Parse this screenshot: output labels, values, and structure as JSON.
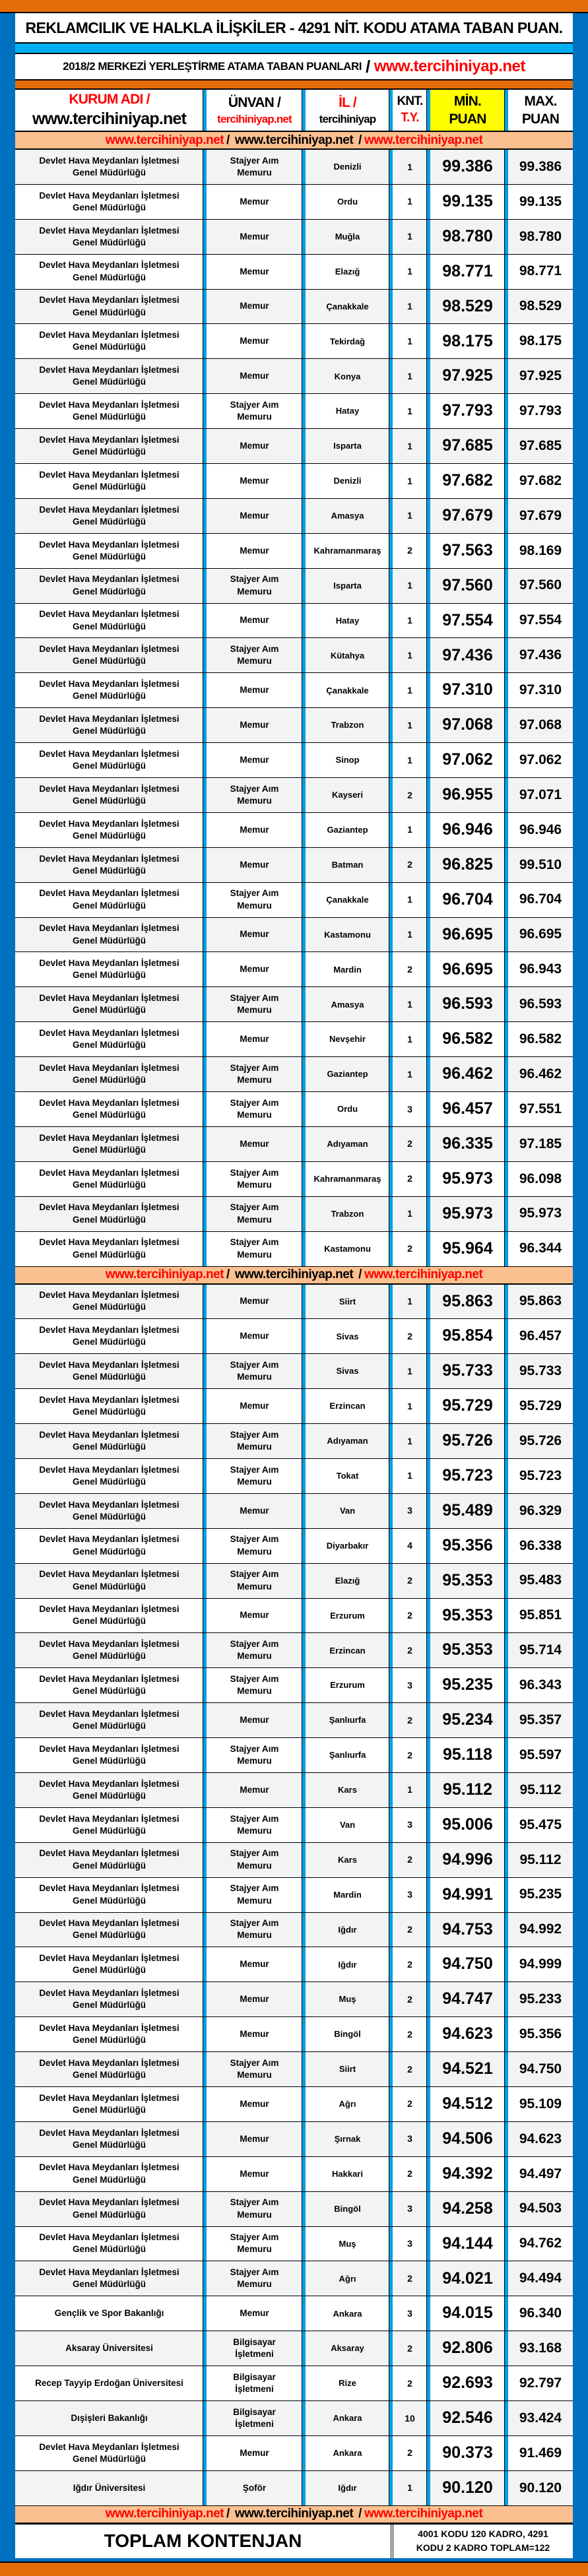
{
  "title": "REKLAMCILIK VE HALKLA İLİŞKİLER - 4291 NİT. KODU ATAMA TABAN PUAN.",
  "subtitle": {
    "text": "2018/2 MERKEZİ YERLEŞTİRME ATAMA TABAN PUANLARI",
    "slash": "/",
    "site": "www.tercihiniyap.net"
  },
  "header": {
    "kurum": "KURUM ADI /",
    "kurum_site": "www.tercihiniyap.net",
    "unvan": "ÜNVAN /",
    "unvan_site": "tercihiniyap.net",
    "il": "İL /",
    "il_site": "tercihiniyap",
    "knt1": "KNT.",
    "knt2": "T.Y.",
    "min1": "MİN.",
    "min2": "PUAN",
    "max1": "MAX.",
    "max2": "PUAN"
  },
  "banner": {
    "left": "www.tercihiniyap.net",
    "sep1": " / ",
    "mid": "www.tercihiniyap.net",
    "sep2": " / ",
    "right": "www.tercihiniyap.net"
  },
  "labels": {
    "dhmi1": "Devlet Hava Meydanları İşletmesi",
    "dhmi2": "Genel Müdürlüğü"
  },
  "colors": {
    "orange": "#e36c09",
    "blue": "#0070c0",
    "cyan": "#00b0f0",
    "highlight": "#ffff00",
    "banner": "#fac090",
    "red": "#ff0000"
  },
  "rows_a": [
    [
      "DHMI",
      "Stajyer Aım|Memuru",
      "Denizli",
      "1",
      "99.386",
      "99.386"
    ],
    [
      "DHMI",
      "Memur",
      "Ordu",
      "1",
      "99.135",
      "99.135"
    ],
    [
      "DHMI",
      "Memur",
      "Muğla",
      "1",
      "98.780",
      "98.780"
    ],
    [
      "DHMI",
      "Memur",
      "Elazığ",
      "1",
      "98.771",
      "98.771"
    ],
    [
      "DHMI",
      "Memur",
      "Çanakkale",
      "1",
      "98.529",
      "98.529"
    ],
    [
      "DHMI",
      "Memur",
      "Tekirdağ",
      "1",
      "98.175",
      "98.175"
    ],
    [
      "DHMI",
      "Memur",
      "Konya",
      "1",
      "97.925",
      "97.925"
    ],
    [
      "DHMI",
      "Stajyer Aım|Memuru",
      "Hatay",
      "1",
      "97.793",
      "97.793"
    ],
    [
      "DHMI",
      "Memur",
      "Isparta",
      "1",
      "97.685",
      "97.685"
    ],
    [
      "DHMI",
      "Memur",
      "Denizli",
      "1",
      "97.682",
      "97.682"
    ],
    [
      "DHMI",
      "Memur",
      "Amasya",
      "1",
      "97.679",
      "97.679"
    ],
    [
      "DHMI",
      "Memur",
      "Kahramanmaraş",
      "2",
      "97.563",
      "98.169"
    ],
    [
      "DHMI",
      "Stajyer Aım|Memuru",
      "Isparta",
      "1",
      "97.560",
      "97.560"
    ],
    [
      "DHMI",
      "Memur",
      "Hatay",
      "1",
      "97.554",
      "97.554"
    ],
    [
      "DHMI",
      "Stajyer Aım|Memuru",
      "Kütahya",
      "1",
      "97.436",
      "97.436"
    ],
    [
      "DHMI",
      "Memur",
      "Çanakkale",
      "1",
      "97.310",
      "97.310"
    ],
    [
      "DHMI",
      "Memur",
      "Trabzon",
      "1",
      "97.068",
      "97.068"
    ],
    [
      "DHMI",
      "Memur",
      "Sinop",
      "1",
      "97.062",
      "97.062"
    ],
    [
      "DHMI",
      "Stajyer Aım|Memuru",
      "Kayseri",
      "2",
      "96.955",
      "97.071"
    ],
    [
      "DHMI",
      "Memur",
      "Gaziantep",
      "1",
      "96.946",
      "96.946"
    ],
    [
      "DHMI",
      "Memur",
      "Batman",
      "2",
      "96.825",
      "99.510"
    ],
    [
      "DHMI",
      "Stajyer Aım|Memuru",
      "Çanakkale",
      "1",
      "96.704",
      "96.704"
    ],
    [
      "DHMI",
      "Memur",
      "Kastamonu",
      "1",
      "96.695",
      "96.695"
    ],
    [
      "DHMI",
      "Memur",
      "Mardin",
      "2",
      "96.695",
      "96.943"
    ],
    [
      "DHMI",
      "Stajyer Aım|Memuru",
      "Amasya",
      "1",
      "96.593",
      "96.593"
    ],
    [
      "DHMI",
      "Memur",
      "Nevşehir",
      "1",
      "96.582",
      "96.582"
    ],
    [
      "DHMI",
      "Stajyer Aım|Memuru",
      "Gaziantep",
      "1",
      "96.462",
      "96.462"
    ],
    [
      "DHMI",
      "Stajyer Aım|Memuru",
      "Ordu",
      "3",
      "96.457",
      "97.551"
    ],
    [
      "DHMI",
      "Memur",
      "Adıyaman",
      "2",
      "96.335",
      "97.185"
    ],
    [
      "DHMI",
      "Stajyer Aım|Memuru",
      "Kahramanmaraş",
      "2",
      "95.973",
      "96.098"
    ],
    [
      "DHMI",
      "Stajyer Aım|Memuru",
      "Trabzon",
      "1",
      "95.973",
      "95.973"
    ],
    [
      "DHMI",
      "Stajyer Aım|Memuru",
      "Kastamonu",
      "2",
      "95.964",
      "96.344"
    ]
  ],
  "rows_b": [
    [
      "DHMI",
      "Memur",
      "Siirt",
      "1",
      "95.863",
      "95.863"
    ],
    [
      "DHMI",
      "Memur",
      "Sivas",
      "2",
      "95.854",
      "96.457"
    ],
    [
      "DHMI",
      "Stajyer Aım|Memuru",
      "Sivas",
      "1",
      "95.733",
      "95.733"
    ],
    [
      "DHMI",
      "Memur",
      "Erzincan",
      "1",
      "95.729",
      "95.729"
    ],
    [
      "DHMI",
      "Stajyer Aım|Memuru",
      "Adıyaman",
      "1",
      "95.726",
      "95.726"
    ],
    [
      "DHMI",
      "Stajyer Aım|Memuru",
      "Tokat",
      "1",
      "95.723",
      "95.723"
    ],
    [
      "DHMI",
      "Memur",
      "Van",
      "3",
      "95.489",
      "96.329"
    ],
    [
      "DHMI",
      "Stajyer Aım|Memuru",
      "Diyarbakır",
      "4",
      "95.356",
      "96.338"
    ],
    [
      "DHMI",
      "Stajyer Aım|Memuru",
      "Elazığ",
      "2",
      "95.353",
      "95.483"
    ],
    [
      "DHMI",
      "Memur",
      "Erzurum",
      "2",
      "95.353",
      "95.851"
    ],
    [
      "DHMI",
      "Stajyer Aım|Memuru",
      "Erzincan",
      "2",
      "95.353",
      "95.714"
    ],
    [
      "DHMI",
      "Stajyer Aım|Memuru",
      "Erzurum",
      "3",
      "95.235",
      "96.343"
    ],
    [
      "DHMI",
      "Memur",
      "Şanlıurfa",
      "2",
      "95.234",
      "95.357"
    ],
    [
      "DHMI",
      "Stajyer Aım|Memuru",
      "Şanlıurfa",
      "2",
      "95.118",
      "95.597"
    ],
    [
      "DHMI",
      "Memur",
      "Kars",
      "1",
      "95.112",
      "95.112"
    ],
    [
      "DHMI",
      "Stajyer Aım|Memuru",
      "Van",
      "3",
      "95.006",
      "95.475"
    ],
    [
      "DHMI",
      "Stajyer Aım|Memuru",
      "Kars",
      "2",
      "94.996",
      "95.112"
    ],
    [
      "DHMI",
      "Stajyer Aım|Memuru",
      "Mardin",
      "3",
      "94.991",
      "95.235"
    ],
    [
      "DHMI",
      "Stajyer Aım|Memuru",
      "Iğdır",
      "2",
      "94.753",
      "94.992"
    ],
    [
      "DHMI",
      "Memur",
      "Iğdır",
      "2",
      "94.750",
      "94.999"
    ],
    [
      "DHMI",
      "Memur",
      "Muş",
      "2",
      "94.747",
      "95.233"
    ],
    [
      "DHMI",
      "Memur",
      "Bingöl",
      "2",
      "94.623",
      "95.356"
    ],
    [
      "DHMI",
      "Stajyer Aım|Memuru",
      "Siirt",
      "2",
      "94.521",
      "94.750"
    ],
    [
      "DHMI",
      "Memur",
      "Ağrı",
      "2",
      "94.512",
      "95.109"
    ],
    [
      "DHMI",
      "Memur",
      "Şırnak",
      "3",
      "94.506",
      "94.623"
    ],
    [
      "DHMI",
      "Memur",
      "Hakkari",
      "2",
      "94.392",
      "94.497"
    ],
    [
      "DHMI",
      "Stajyer Aım|Memuru",
      "Bingöl",
      "3",
      "94.258",
      "94.503"
    ],
    [
      "DHMI",
      "Stajyer Aım|Memuru",
      "Muş",
      "3",
      "94.144",
      "94.762"
    ],
    [
      "DHMI",
      "Stajyer Aım|Memuru",
      "Ağrı",
      "2",
      "94.021",
      "94.494"
    ],
    [
      "Gençlik ve Spor Bakanlığı",
      "Memur",
      "Ankara",
      "3",
      "94.015",
      "96.340"
    ],
    [
      "Aksaray Üniversitesi",
      "Bilgisayar|İşletmeni",
      "Aksaray",
      "2",
      "92.806",
      "93.168"
    ],
    [
      "Recep Tayyip Erdoğan Üniversitesi",
      "Bilgisayar|İşletmeni",
      "Rize",
      "2",
      "92.693",
      "92.797"
    ],
    [
      "Dışişleri Bakanlığı",
      "Bilgisayar|İşletmeni",
      "Ankara",
      "10",
      "92.546",
      "93.424"
    ],
    [
      "DHMI",
      "Memur",
      "Ankara",
      "2",
      "90.373",
      "91.469"
    ],
    [
      "Iğdır Üniversitesi",
      "Şoför",
      "Iğdır",
      "1",
      "90.120",
      "90.120"
    ]
  ],
  "footer": {
    "label": "TOPLAM KONTENJAN",
    "note1": "4001 KODU 120 KADRO, 4291",
    "note2": "KODU 2 KADRO TOPLAM=122"
  }
}
